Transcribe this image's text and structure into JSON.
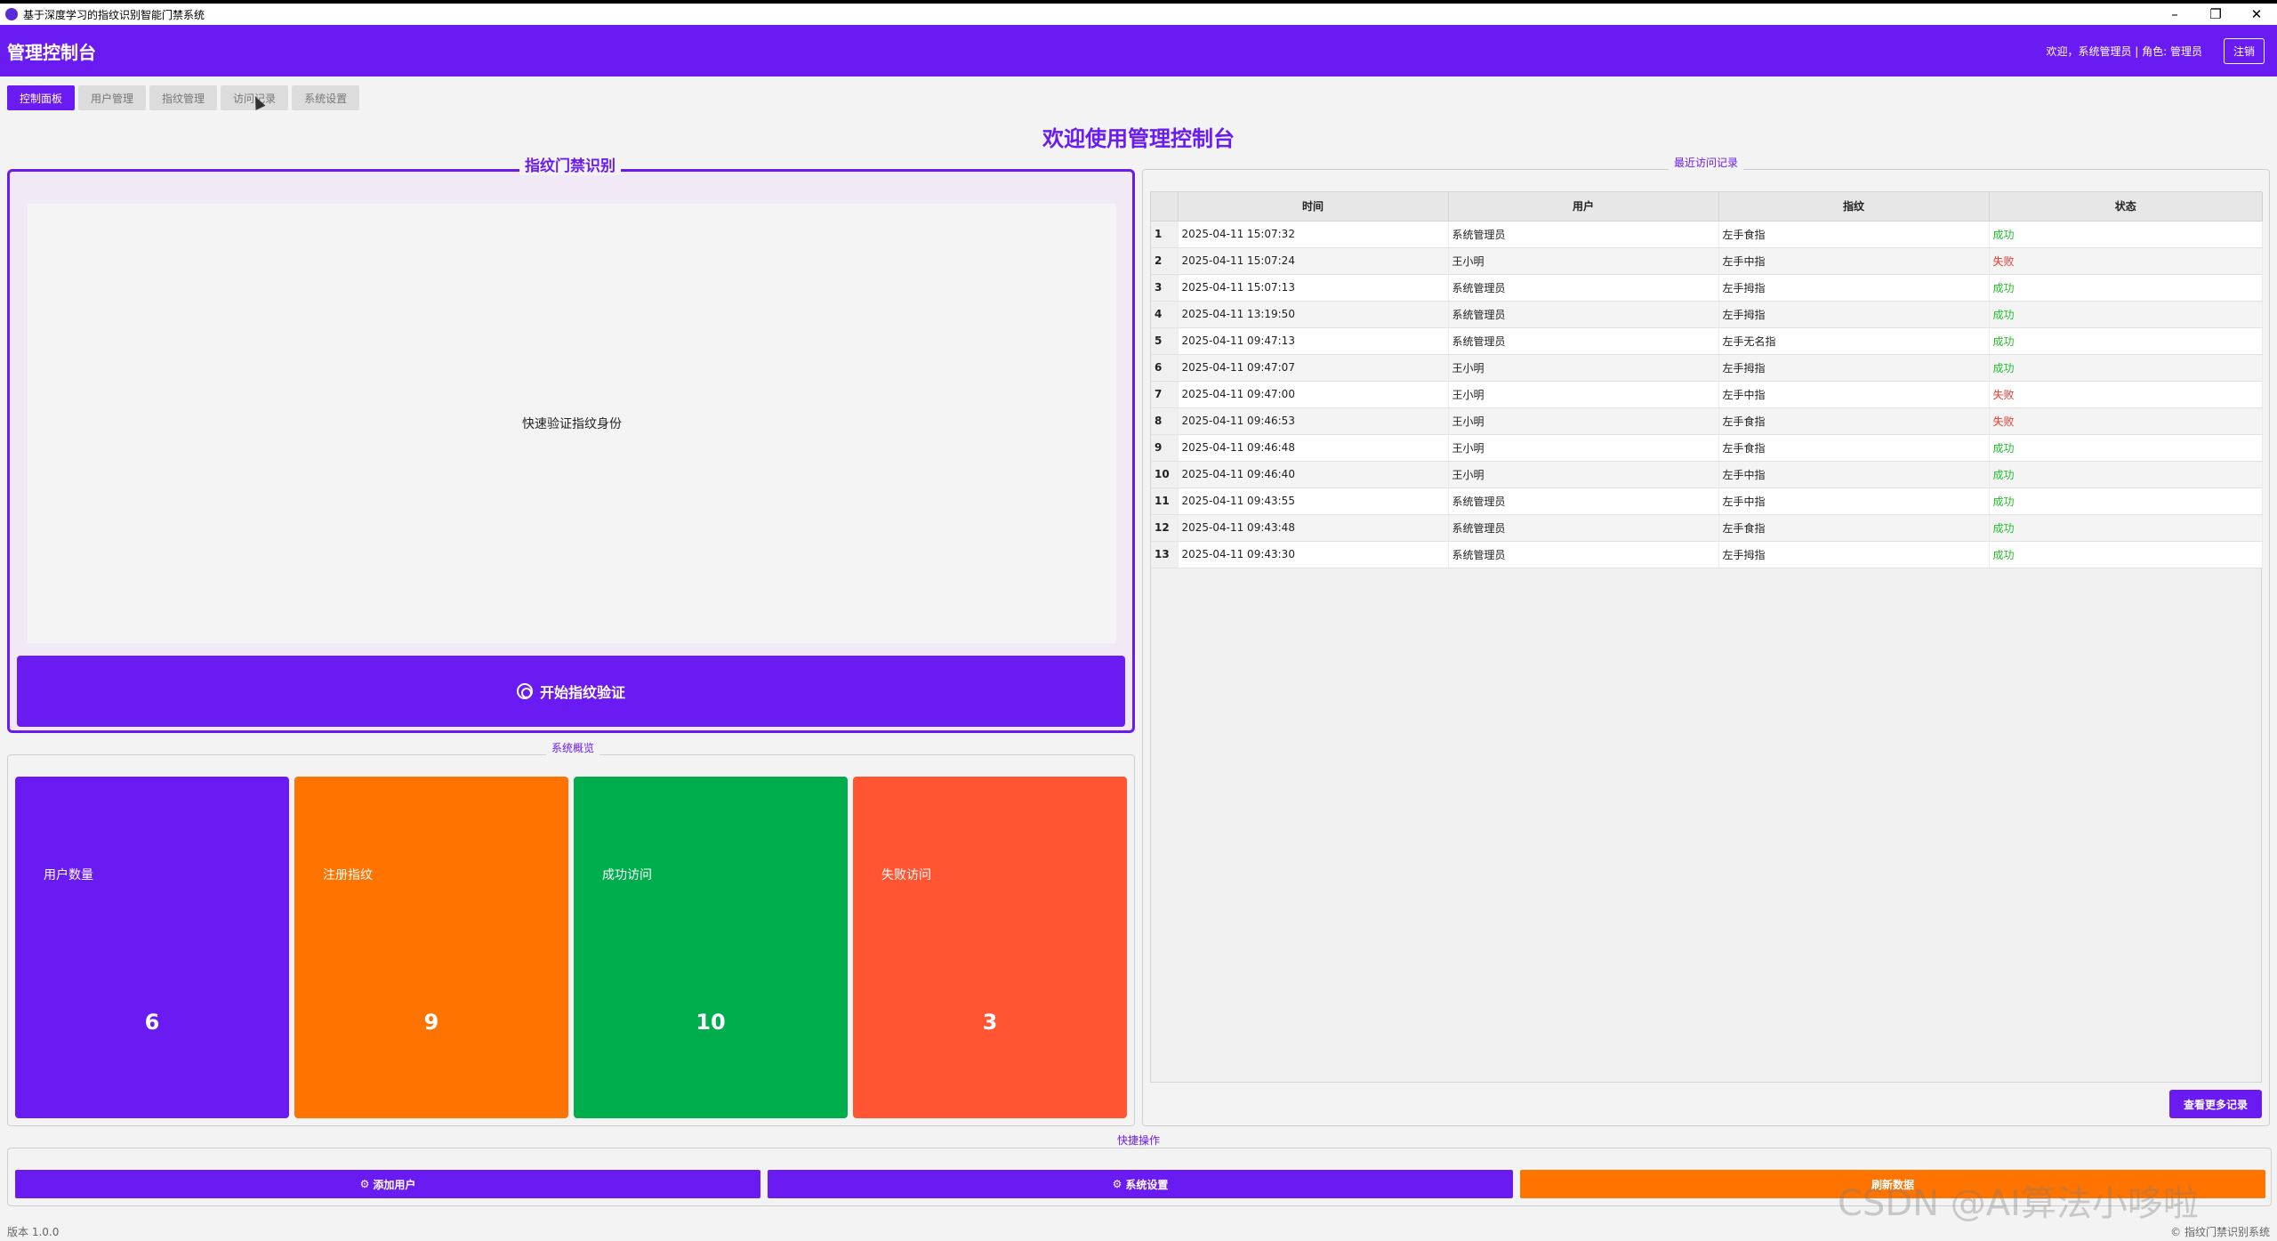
{
  "window": {
    "title": "基于深度学习的指纹识别智能门禁系统",
    "minimize": "–",
    "restore": "❐",
    "close": "✕"
  },
  "header": {
    "title": "管理控制台",
    "welcome": "欢迎，系统管理员 | 角色: 管理员",
    "logout": "注销"
  },
  "tabs": [
    {
      "label": "控制面板",
      "active": true
    },
    {
      "label": "用户管理"
    },
    {
      "label": "指纹管理"
    },
    {
      "label": "访问记录"
    },
    {
      "label": "系统设置"
    }
  ],
  "main": {
    "welcome_title": "欢迎使用管理控制台"
  },
  "fingerprint": {
    "section_title": "指纹门禁识别",
    "display_text": "快速验证指纹身份",
    "button": "开始指纹验证"
  },
  "overview": {
    "section_title": "系统概览",
    "cards": [
      {
        "label": "用户数量",
        "value": "6",
        "color": "#6a1bf2"
      },
      {
        "label": "注册指纹",
        "value": "9",
        "color": "#ff7300"
      },
      {
        "label": "成功访问",
        "value": "10",
        "color": "#00ad4c"
      },
      {
        "label": "失败访问",
        "value": "3",
        "color": "#ff5533"
      }
    ]
  },
  "records": {
    "section_title": "最近访问记录",
    "columns": [
      "时间",
      "用户",
      "指纹",
      "状态"
    ],
    "rows": [
      {
        "idx": "1",
        "time": "2025-04-11 15:07:32",
        "user": "系统管理员",
        "finger": "左手食指",
        "status": "成功",
        "ok": true
      },
      {
        "idx": "2",
        "time": "2025-04-11 15:07:24",
        "user": "王小明",
        "finger": "左手中指",
        "status": "失败",
        "ok": false
      },
      {
        "idx": "3",
        "time": "2025-04-11 15:07:13",
        "user": "系统管理员",
        "finger": "左手拇指",
        "status": "成功",
        "ok": true
      },
      {
        "idx": "4",
        "time": "2025-04-11 13:19:50",
        "user": "系统管理员",
        "finger": "左手拇指",
        "status": "成功",
        "ok": true
      },
      {
        "idx": "5",
        "time": "2025-04-11 09:47:13",
        "user": "系统管理员",
        "finger": "左手无名指",
        "status": "成功",
        "ok": true
      },
      {
        "idx": "6",
        "time": "2025-04-11 09:47:07",
        "user": "王小明",
        "finger": "左手拇指",
        "status": "成功",
        "ok": true
      },
      {
        "idx": "7",
        "time": "2025-04-11 09:47:00",
        "user": "王小明",
        "finger": "左手中指",
        "status": "失败",
        "ok": false
      },
      {
        "idx": "8",
        "time": "2025-04-11 09:46:53",
        "user": "王小明",
        "finger": "左手食指",
        "status": "失败",
        "ok": false
      },
      {
        "idx": "9",
        "time": "2025-04-11 09:46:48",
        "user": "王小明",
        "finger": "左手食指",
        "status": "成功",
        "ok": true
      },
      {
        "idx": "10",
        "time": "2025-04-11 09:46:40",
        "user": "王小明",
        "finger": "左手中指",
        "status": "成功",
        "ok": true
      },
      {
        "idx": "11",
        "time": "2025-04-11 09:43:55",
        "user": "系统管理员",
        "finger": "左手中指",
        "status": "成功",
        "ok": true
      },
      {
        "idx": "12",
        "time": "2025-04-11 09:43:48",
        "user": "系统管理员",
        "finger": "左手食指",
        "status": "成功",
        "ok": true
      },
      {
        "idx": "13",
        "time": "2025-04-11 09:43:30",
        "user": "系统管理员",
        "finger": "左手拇指",
        "status": "成功",
        "ok": true
      }
    ],
    "more_button": "查看更多记录"
  },
  "quick": {
    "section_title": "快捷操作",
    "buttons": [
      {
        "label": "添加用户",
        "color": "#6a1bf2",
        "icon": "gear-icon"
      },
      {
        "label": "系统设置",
        "color": "#6a1bf2",
        "icon": "gear-icon"
      },
      {
        "label": "刷新数据",
        "color": "#ff7300",
        "icon": ""
      }
    ]
  },
  "footer": {
    "version": "版本 1.0.0",
    "copyright": "© 指纹门禁识别系统"
  },
  "watermark": "CSDN @AI算法小哆啦",
  "colors": {
    "accent": "#6a1bf2",
    "success": "#22c02a",
    "fail": "#f03a2a"
  }
}
